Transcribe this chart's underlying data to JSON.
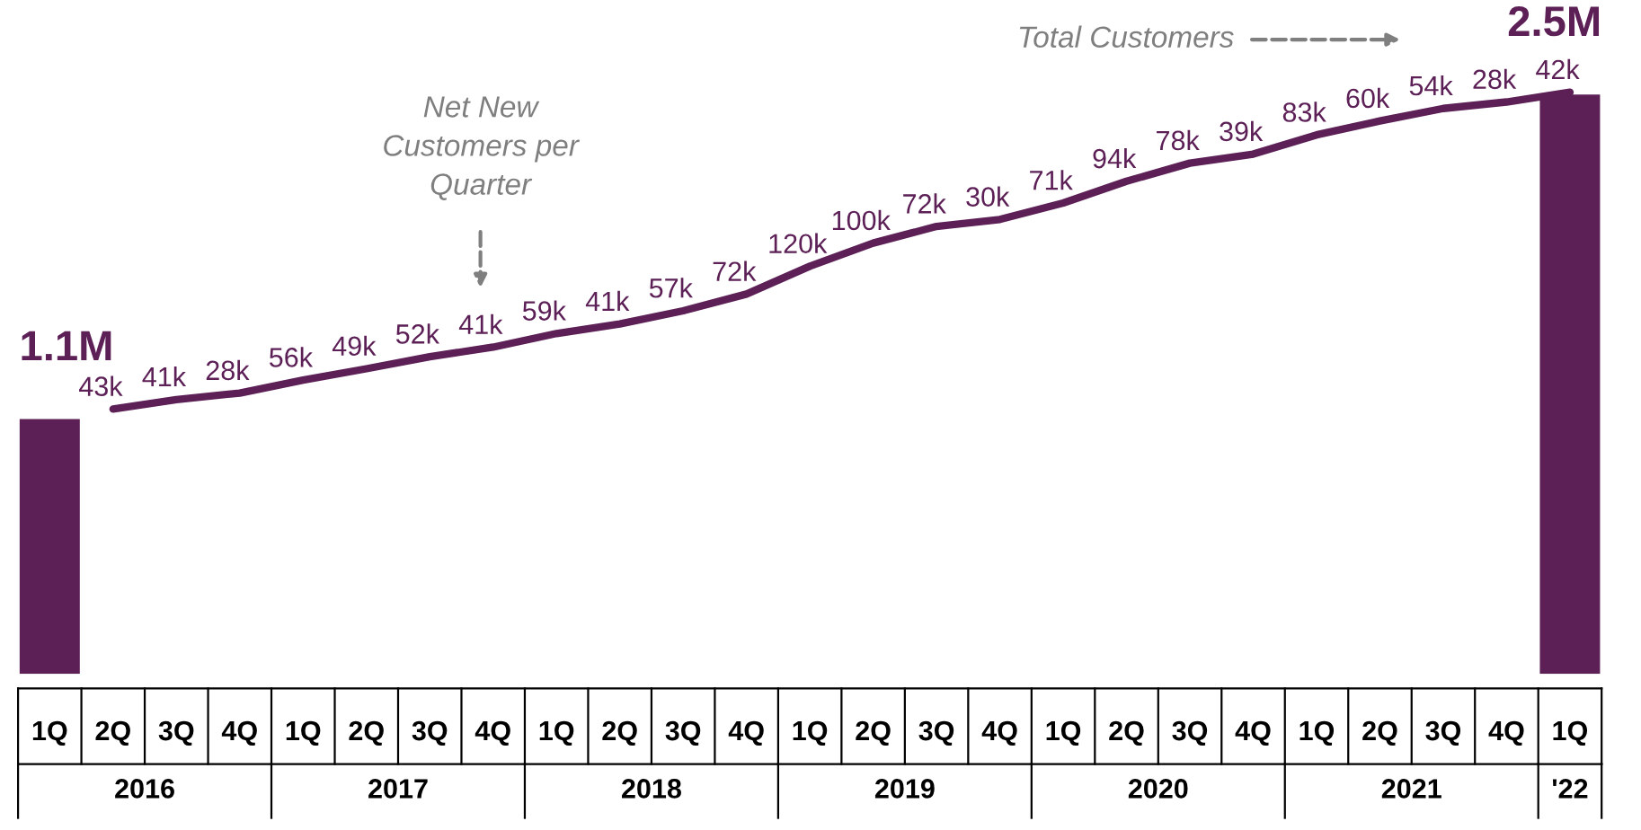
{
  "chart_data": {
    "type": "bar",
    "categories": [
      "1Q",
      "2Q",
      "3Q",
      "4Q",
      "1Q",
      "2Q",
      "3Q",
      "4Q",
      "1Q",
      "2Q",
      "3Q",
      "4Q",
      "1Q",
      "2Q",
      "3Q",
      "4Q",
      "1Q",
      "2Q",
      "3Q",
      "4Q",
      "1Q",
      "2Q",
      "3Q",
      "4Q",
      "1Q"
    ],
    "series": [
      {
        "color": "#5c2057",
        "values": [
          1.1,
          null,
          null,
          null,
          null,
          null,
          null,
          null,
          null,
          null,
          null,
          null,
          null,
          null,
          null,
          null,
          null,
          null,
          null,
          null,
          null,
          null,
          null,
          null,
          2.5
        ],
        "value_labels": [
          "1.1M",
          null,
          null,
          null,
          null,
          null,
          null,
          null,
          null,
          null,
          null,
          null,
          null,
          null,
          null,
          null,
          null,
          null,
          null,
          null,
          null,
          null,
          null,
          null,
          "2.5M"
        ]
      },
      {
        "type": "line",
        "color": "#5c2057",
        "values": [
          null,
          1.143,
          1.184,
          1.212,
          1.268,
          1.317,
          1.369,
          1.41,
          1.469,
          1.51,
          1.567,
          1.639,
          1.759,
          1.859,
          1.931,
          1.961,
          2.032,
          2.126,
          2.204,
          2.243,
          2.326,
          2.386,
          2.44,
          2.468,
          2.51
        ]
      }
    ],
    "tick_labels": "x",
    "annotations": [
      "Total Customers",
      "Net New\nCustomers per\nQuarter",
      "2016",
      "2017",
      "2018",
      "2019",
      "2020",
      "2021",
      "'22",
      "43k",
      "41k",
      "28k",
      "56k",
      "49k",
      "52k",
      "41k",
      "59k",
      "41k",
      "57k",
      "72k",
      "120k",
      "100k",
      "72k",
      "30k",
      "71k",
      "94k",
      "78k",
      "39k",
      "83k",
      "60k",
      "54k",
      "28k",
      "42k"
    ]
  }
}
